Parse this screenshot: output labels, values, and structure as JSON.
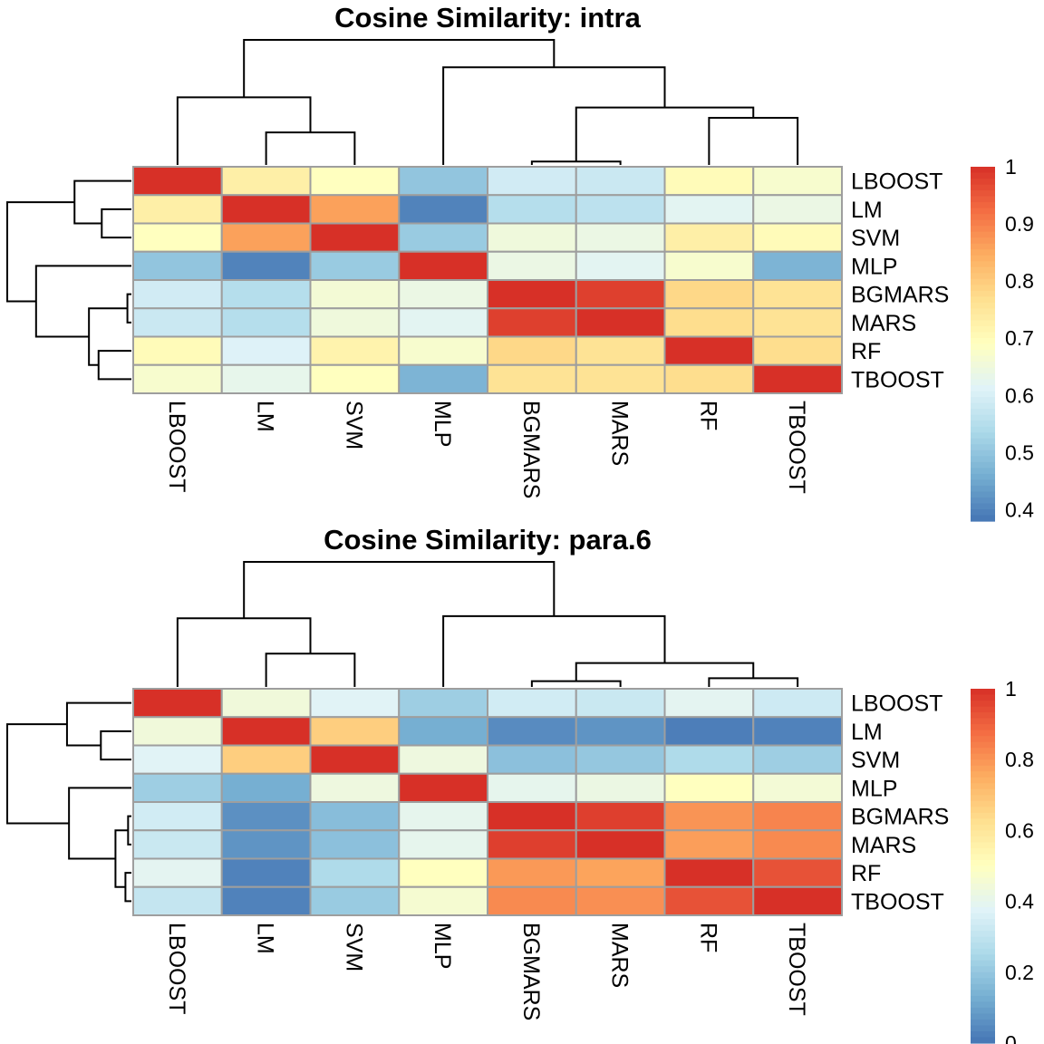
{
  "chart_data": [
    {
      "type": "heatmap",
      "title": "Cosine Similarity: intra",
      "rows": [
        "LBOOST",
        "LM",
        "SVM",
        "MLP",
        "BGMARS",
        "MARS",
        "RF",
        "TBOOST"
      ],
      "columns": [
        "LBOOST",
        "LM",
        "SVM",
        "MLP",
        "BGMARS",
        "MARS",
        "RF",
        "TBOOST"
      ],
      "values": [
        [
          1.0,
          0.73,
          0.69,
          0.5,
          0.59,
          0.58,
          0.7,
          0.67
        ],
        [
          0.73,
          1.0,
          0.86,
          0.4,
          0.55,
          0.56,
          0.62,
          0.64
        ],
        [
          0.69,
          0.86,
          1.0,
          0.51,
          0.65,
          0.64,
          0.73,
          0.7
        ],
        [
          0.5,
          0.4,
          0.51,
          1.0,
          0.64,
          0.62,
          0.67,
          0.47
        ],
        [
          0.59,
          0.55,
          0.66,
          0.64,
          1.0,
          0.98,
          0.78,
          0.76
        ],
        [
          0.58,
          0.55,
          0.65,
          0.62,
          0.98,
          1.0,
          0.77,
          0.76
        ],
        [
          0.7,
          0.61,
          0.72,
          0.67,
          0.78,
          0.76,
          1.0,
          0.77
        ],
        [
          0.67,
          0.63,
          0.69,
          0.47,
          0.76,
          0.76,
          0.77,
          1.0
        ]
      ],
      "legend": {
        "min": 0.38,
        "max": 1.0,
        "ticks": [
          "1",
          "0.9",
          "0.8",
          "0.7",
          "0.6",
          "0.5",
          "0.4"
        ],
        "tick_values": [
          1.0,
          0.9,
          0.8,
          0.7,
          0.6,
          0.5,
          0.4
        ]
      },
      "colors": [
        "#4575b4",
        "#74add1",
        "#abd9e9",
        "#e0f3f8",
        "#ffffbf",
        "#fee090",
        "#fdae61",
        "#f46d43",
        "#d73027"
      ],
      "col_dendrogram": [
        {
          "a": 5,
          "b": 6,
          "h": 0.04
        },
        {
          "a": 7,
          "b": 8,
          "h": 0.55
        },
        {
          "a": 2,
          "b": 3,
          "h": 0.38
        },
        {
          "a": "5-6",
          "b": "7-8",
          "h": 0.67
        },
        {
          "a": 1,
          "b": "2-3",
          "h": 0.79
        },
        {
          "a": 4,
          "b": "5-8",
          "h": 1.14
        },
        {
          "a": "1-3",
          "b": "4-8",
          "h": 1.46
        }
      ],
      "row_dendrogram": [
        {
          "a": 5,
          "b": 6,
          "h": 0.05
        },
        {
          "a": 7,
          "b": 8,
          "h": 0.41
        },
        {
          "a": 2,
          "b": 3,
          "h": 0.37
        },
        {
          "a": "5-6",
          "b": "7-8",
          "h": 0.53
        },
        {
          "a": 1,
          "b": "2-3",
          "h": 0.71
        },
        {
          "a": 4,
          "b": "5-8",
          "h": 1.19
        },
        {
          "a": "1-3",
          "b": "4-8",
          "h": 1.55
        }
      ]
    },
    {
      "type": "heatmap",
      "title": "Cosine Similarity: para.6",
      "rows": [
        "LBOOST",
        "LM",
        "SVM",
        "MLP",
        "BGMARS",
        "MARS",
        "RF",
        "TBOOST"
      ],
      "columns": [
        "LBOOST",
        "LM",
        "SVM",
        "MLP",
        "BGMARS",
        "MARS",
        "RF",
        "TBOOST"
      ],
      "values": [
        [
          1.0,
          0.44,
          0.38,
          0.22,
          0.34,
          0.32,
          0.39,
          0.33
        ],
        [
          0.44,
          1.0,
          0.67,
          0.13,
          0.05,
          0.07,
          0.02,
          0.03
        ],
        [
          0.38,
          0.67,
          1.0,
          0.43,
          0.18,
          0.2,
          0.26,
          0.22
        ],
        [
          0.22,
          0.13,
          0.43,
          1.0,
          0.4,
          0.42,
          0.5,
          0.45
        ],
        [
          0.34,
          0.06,
          0.17,
          0.4,
          1.0,
          0.97,
          0.8,
          0.83
        ],
        [
          0.32,
          0.07,
          0.18,
          0.4,
          0.97,
          1.0,
          0.78,
          0.82
        ],
        [
          0.39,
          0.03,
          0.26,
          0.5,
          0.79,
          0.77,
          1.0,
          0.93
        ],
        [
          0.31,
          0.03,
          0.21,
          0.46,
          0.82,
          0.81,
          0.93,
          1.0
        ]
      ],
      "legend": {
        "min": 0.0,
        "max": 1.0,
        "ticks": [
          "1",
          "0.8",
          "0.6",
          "0.4",
          "0.2",
          "0"
        ],
        "tick_values": [
          1.0,
          0.8,
          0.6,
          0.4,
          0.2,
          0.0
        ]
      },
      "colors": [
        "#4575b4",
        "#74add1",
        "#abd9e9",
        "#e0f3f8",
        "#ffffbf",
        "#fee090",
        "#fdae61",
        "#f46d43",
        "#d73027"
      ],
      "col_dendrogram": [
        {
          "a": 5,
          "b": 6,
          "h": 0.08
        },
        {
          "a": 7,
          "b": 8,
          "h": 0.12
        },
        {
          "a": 2,
          "b": 3,
          "h": 0.46
        },
        {
          "a": "5-6",
          "b": "7-8",
          "h": 0.33
        },
        {
          "a": 1,
          "b": "2-3",
          "h": 0.95
        },
        {
          "a": 4,
          "b": "5-8",
          "h": 0.98
        },
        {
          "a": "1-3",
          "b": "4-8",
          "h": 1.73
        }
      ],
      "row_dendrogram": [
        {
          "a": 5,
          "b": 6,
          "h": 0.05
        },
        {
          "a": 7,
          "b": 8,
          "h": 0.09
        },
        {
          "a": 2,
          "b": 3,
          "h": 0.46
        },
        {
          "a": "5-6",
          "b": "7-8",
          "h": 0.24
        },
        {
          "a": 1,
          "b": "2-3",
          "h": 0.97
        },
        {
          "a": 4,
          "b": "5-8",
          "h": 0.94
        },
        {
          "a": "1-3",
          "b": "4-8",
          "h": 1.87
        }
      ]
    }
  ]
}
